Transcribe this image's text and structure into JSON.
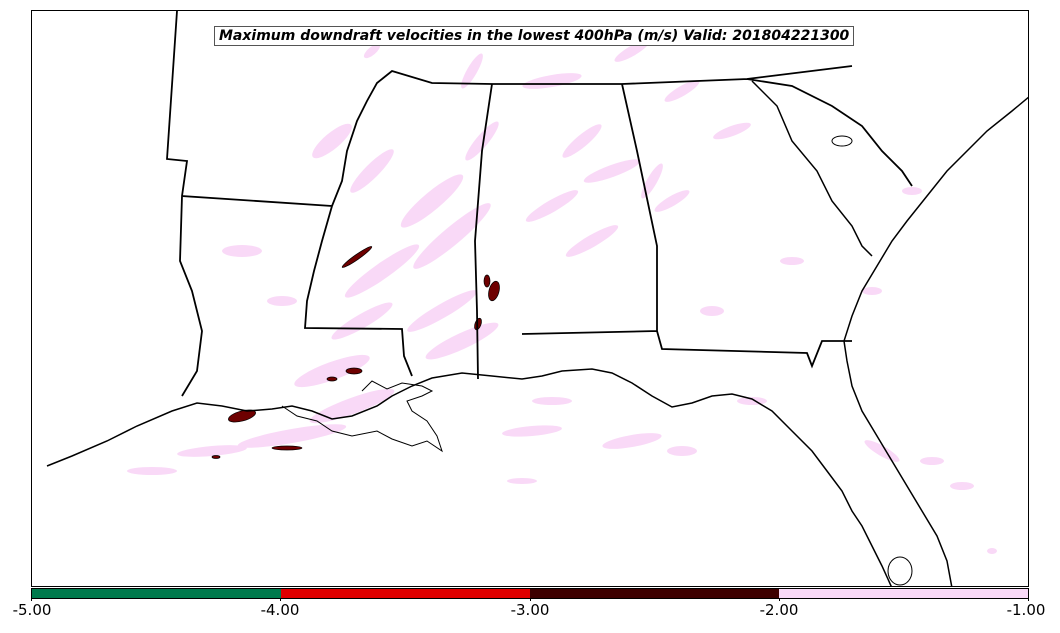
{
  "title": "Maximum downdraft velocities in the lowest 400hPa (m/s) Valid: 201804221300",
  "colorbar": {
    "ticks": [
      "-5.00",
      "-4.00",
      "-3.00",
      "-2.00",
      "-1.00"
    ],
    "colors": [
      "#007a4d",
      "#e00000",
      "#3d0000",
      "#f9d9f7"
    ]
  },
  "colors": {
    "light_downdraft": "#f9d9f7",
    "strong_downdraft": "#6e0000",
    "boundaries": "#000000"
  }
}
